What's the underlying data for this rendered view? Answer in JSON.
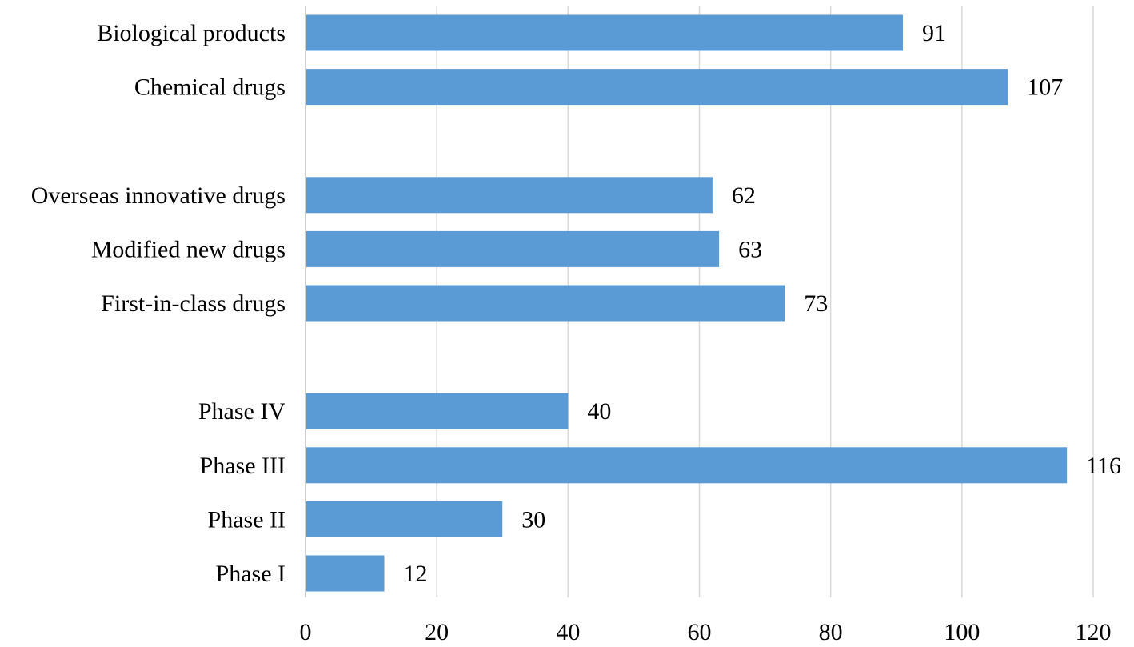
{
  "chart_data": {
    "type": "bar",
    "orientation": "horizontal",
    "title": "",
    "xlabel": "",
    "ylabel": "",
    "bar_color": "#5b9bd5",
    "grid": true,
    "legend": "none",
    "xlim": [
      0,
      120
    ],
    "xticks": [
      0,
      20,
      40,
      60,
      80,
      100,
      120
    ],
    "groups": [
      {
        "categories": [
          "Biological products",
          "Chemical drugs"
        ],
        "values": [
          91,
          107
        ]
      },
      {
        "categories": [
          "Overseas innovative drugs",
          "Modified new drugs",
          "First-in-class drugs"
        ],
        "values": [
          62,
          63,
          73
        ]
      },
      {
        "categories": [
          "Phase IV",
          "Phase III",
          "Phase II",
          "Phase I"
        ],
        "values": [
          40,
          116,
          30,
          12
        ]
      }
    ]
  }
}
